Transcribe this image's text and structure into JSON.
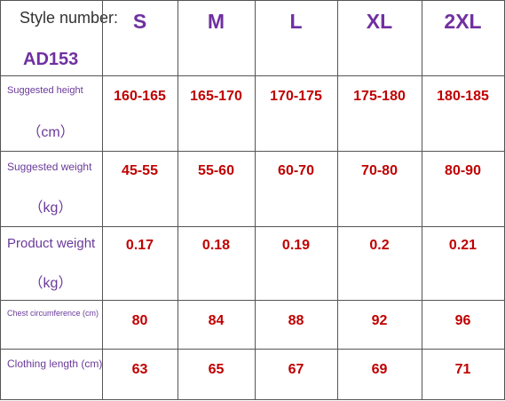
{
  "header": {
    "label": "Style number:",
    "style": "AD153",
    "sizes": [
      "S",
      "M",
      "L",
      "XL",
      "2XL"
    ]
  },
  "rows": [
    {
      "label": "Suggested height",
      "unit": "（cm）",
      "values": [
        "160-165",
        "165-170",
        "170-175",
        "175-180",
        "180-185"
      ]
    },
    {
      "label": "Suggested weight",
      "unit": "（kg）",
      "values": [
        "45-55",
        "55-60",
        "60-70",
        "70-80",
        "80-90"
      ]
    },
    {
      "label": "Product weight",
      "unit": "（kg）",
      "values": [
        "0.17",
        "0.18",
        "0.19",
        "0.2",
        "0.21"
      ]
    },
    {
      "label": "Chest circumference (cm)",
      "values": [
        "80",
        "84",
        "88",
        "92",
        "96"
      ]
    },
    {
      "label": "Clothing length (cm)",
      "values": [
        "63",
        "65",
        "67",
        "69",
        "71"
      ]
    }
  ]
}
